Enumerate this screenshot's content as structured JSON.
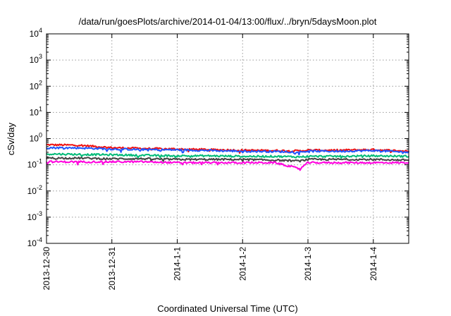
{
  "chart_data": {
    "type": "line",
    "title": "/data/run/goesPlots/archive/2014-01-04/13:00/flux/../bryn/5daysMoon.plot",
    "xlabel": "Coordinated Universal Time (UTC)",
    "ylabel": "cSv/day",
    "y_scale": "log",
    "ylim": [
      0.0001,
      10000
    ],
    "y_tick_labels": [
      {
        "base": "10",
        "exp": "-4"
      },
      {
        "base": "10",
        "exp": "-3"
      },
      {
        "base": "10",
        "exp": "-2"
      },
      {
        "base": "10",
        "exp": "-1"
      },
      {
        "base": "10",
        "exp": "0"
      },
      {
        "base": "10",
        "exp": "1"
      },
      {
        "base": "10",
        "exp": "2"
      },
      {
        "base": "10",
        "exp": "3"
      },
      {
        "base": "10",
        "exp": "4"
      }
    ],
    "x_tick_labels": [
      "2013-12-30",
      "2013-12-31",
      "2014-1-1",
      "2014-1-2",
      "2014-1-3",
      "2014-1-4"
    ],
    "xlim": [
      "2013-12-30T00:00",
      "2014-01-04T13:00"
    ],
    "grid": true,
    "legend": "none",
    "series_colors": [
      "#ee1111",
      "#2255ff",
      "#00bb77",
      "#444444",
      "#ff00dd"
    ],
    "series": [
      {
        "color": "#ee1111",
        "x": [
          "2013-12-30T00:00",
          "2013-12-30T12:00",
          "2013-12-31T00:00",
          "2013-12-31T12:00",
          "2014-01-01T00:00",
          "2014-01-01T12:00",
          "2014-01-02T00:00",
          "2014-01-02T12:00",
          "2014-01-02T21:00",
          "2014-01-03T00:00",
          "2014-01-03T12:00",
          "2014-01-04T00:00",
          "2014-01-04T13:00"
        ],
        "y": [
          0.58,
          0.56,
          0.45,
          0.42,
          0.4,
          0.38,
          0.36,
          0.35,
          0.34,
          0.36,
          0.36,
          0.38,
          0.33
        ]
      },
      {
        "color": "#2255ff",
        "x": [
          "2013-12-30T00:00",
          "2013-12-30T12:00",
          "2013-12-31T00:00",
          "2013-12-31T12:00",
          "2014-01-01T00:00",
          "2014-01-01T12:00",
          "2014-01-02T00:00",
          "2014-01-02T12:00",
          "2014-01-02T21:00",
          "2014-01-03T00:00",
          "2014-01-03T12:00",
          "2014-01-04T00:00",
          "2014-01-04T13:00"
        ],
        "y": [
          0.45,
          0.44,
          0.4,
          0.38,
          0.37,
          0.35,
          0.33,
          0.32,
          0.31,
          0.33,
          0.33,
          0.35,
          0.3
        ]
      },
      {
        "color": "#00bb77",
        "x": [
          "2013-12-30T00:00",
          "2013-12-30T12:00",
          "2013-12-31T00:00",
          "2013-12-31T12:00",
          "2014-01-01T00:00",
          "2014-01-01T12:00",
          "2014-01-02T00:00",
          "2014-01-02T12:00",
          "2014-01-02T21:00",
          "2014-01-03T00:00",
          "2014-01-03T12:00",
          "2014-01-04T00:00",
          "2014-01-04T13:00"
        ],
        "y": [
          0.26,
          0.25,
          0.24,
          0.23,
          0.22,
          0.22,
          0.21,
          0.21,
          0.2,
          0.21,
          0.21,
          0.22,
          0.21
        ]
      },
      {
        "color": "#444444",
        "x": [
          "2013-12-30T00:00",
          "2013-12-30T12:00",
          "2013-12-31T00:00",
          "2013-12-31T12:00",
          "2014-01-01T00:00",
          "2014-01-01T12:00",
          "2014-01-02T00:00",
          "2014-01-02T12:00",
          "2014-01-02T21:00",
          "2014-01-03T00:00",
          "2014-01-03T12:00",
          "2014-01-04T00:00",
          "2014-01-04T13:00"
        ],
        "y": [
          0.18,
          0.18,
          0.17,
          0.17,
          0.16,
          0.16,
          0.16,
          0.15,
          0.14,
          0.16,
          0.16,
          0.16,
          0.15
        ]
      },
      {
        "color": "#ff00dd",
        "x": [
          "2013-12-30T00:00",
          "2013-12-30T12:00",
          "2013-12-31T00:00",
          "2013-12-31T12:00",
          "2014-01-01T00:00",
          "2014-01-01T12:00",
          "2014-01-02T00:00",
          "2014-01-02T12:00",
          "2014-01-02T21:00",
          "2014-01-03T00:00",
          "2014-01-03T12:00",
          "2014-01-04T00:00",
          "2014-01-04T13:00"
        ],
        "y": [
          0.13,
          0.13,
          0.13,
          0.13,
          0.12,
          0.12,
          0.12,
          0.12,
          0.07,
          0.12,
          0.12,
          0.12,
          0.12
        ]
      }
    ]
  }
}
